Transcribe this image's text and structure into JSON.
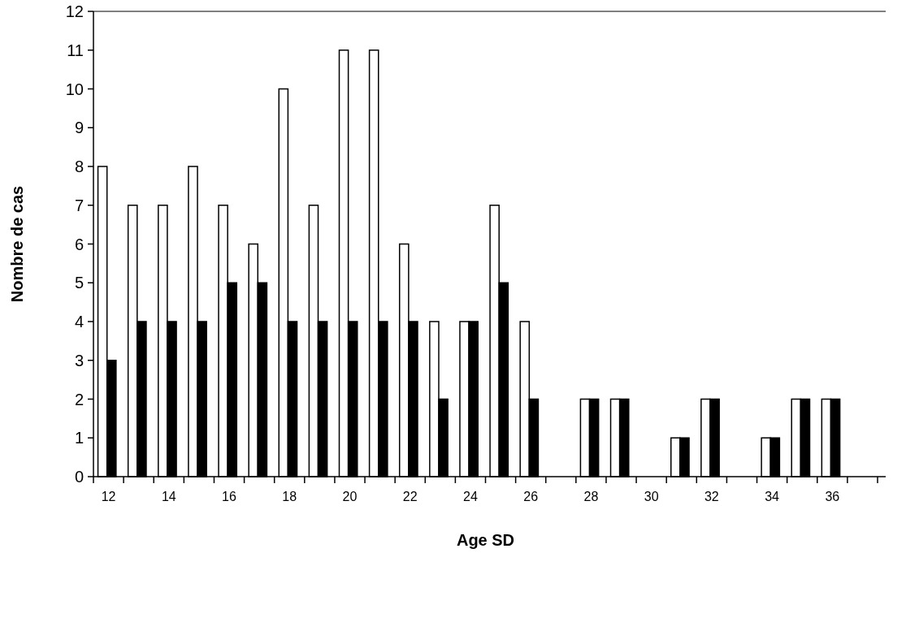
{
  "chart_data": {
    "type": "bar",
    "xlabel": "Age SD",
    "ylabel": "Nombre de cas",
    "categories": [
      "12",
      null,
      "14",
      null,
      "16",
      null,
      "18",
      null,
      "20",
      null,
      "22",
      null,
      "24",
      null,
      "26",
      null,
      "28",
      null,
      "30",
      null,
      "32",
      null,
      "34",
      null,
      "36",
      null
    ],
    "series": [
      {
        "color": "#ffffff",
        "values": [
          8,
          7,
          7,
          8,
          7,
          6,
          10,
          7,
          11,
          11,
          6,
          4,
          4,
          7,
          4,
          0,
          2,
          2,
          0,
          1,
          2,
          0,
          1,
          2,
          2,
          0
        ]
      },
      {
        "color": "#000000",
        "values": [
          3,
          4,
          4,
          4,
          5,
          5,
          4,
          4,
          4,
          4,
          4,
          2,
          4,
          5,
          2,
          0,
          2,
          2,
          0,
          1,
          2,
          0,
          1,
          2,
          2,
          0
        ]
      }
    ],
    "ylim": [
      0,
      12
    ],
    "yticks": [
      0,
      1,
      2,
      3,
      4,
      5,
      6,
      7,
      8,
      9,
      10,
      11,
      12
    ],
    "grid": false
  }
}
